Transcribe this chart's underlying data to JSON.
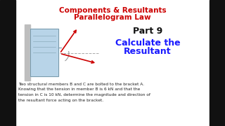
{
  "bg_color": "#ffffff",
  "title_line1": "Components & Resultants",
  "title_line2": "Parallelogram Law",
  "title_color": "#cc0000",
  "title_fontsize": 7.5,
  "part_text": "Part 9",
  "part_fontsize": 9,
  "part_color": "#111111",
  "calc_line1": "Calculate the",
  "calc_line2": "Resultant",
  "calc_color": "#1a1aff",
  "calc_fontsize": 9,
  "body_text1": "Two structural members B and C are bolted to the bracket A.",
  "body_text2": "Knowing that the tension in member B is 6 kN and that the",
  "body_text3": "tension in C is 10 kN, determine the magnitude and direction of",
  "body_text4": "the resultant force acting on the bracket.",
  "body_fontsize": 4.2,
  "body_color": "#222222",
  "wall_color": "#bebebe",
  "bracket_face": "#b8d4e8",
  "bracket_edge": "#7799aa",
  "arrow_color": "#cc0000",
  "arc_color": "#999999",
  "dash_color": "#aaaaaa",
  "left_bar_width": 22,
  "right_bar_width": 22,
  "bar_color": "#111111"
}
